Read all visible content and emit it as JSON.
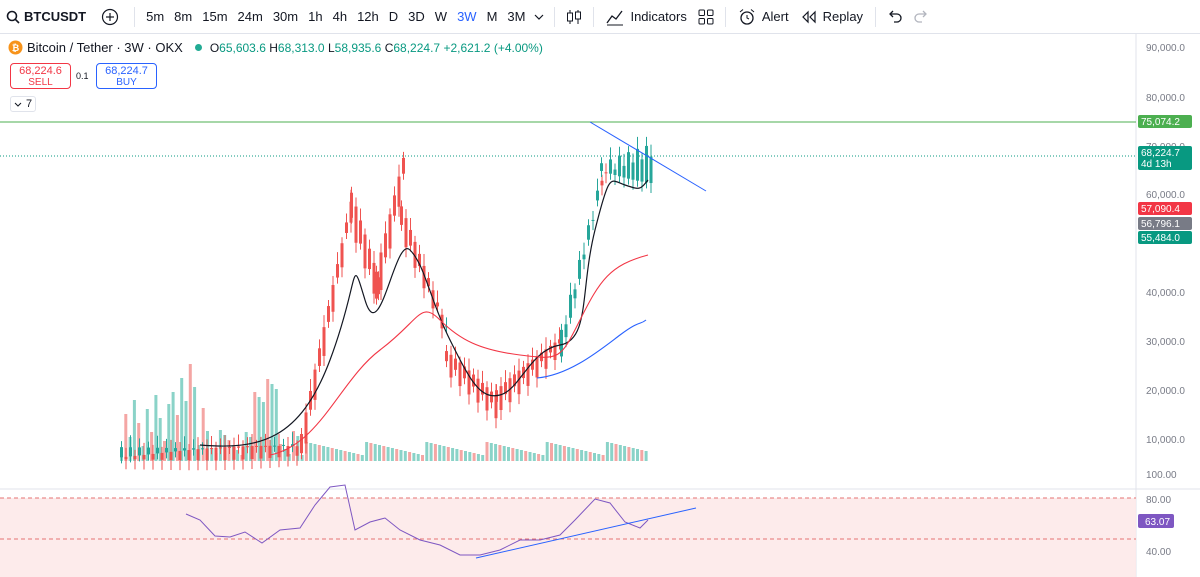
{
  "toolbar": {
    "symbol": "BTCUSDT",
    "intervals": [
      "5m",
      "8m",
      "15m",
      "24m",
      "30m",
      "1h",
      "4h",
      "12h",
      "D",
      "3D",
      "W",
      "3W",
      "M",
      "3M"
    ],
    "active_interval": "3W",
    "indicators_label": "Indicators",
    "alert_label": "Alert",
    "replay_label": "Replay"
  },
  "legend": {
    "title": "Bitcoin / Tether · 3W · OKX",
    "open": "65,603.6",
    "high": "68,313.0",
    "low": "58,935.6",
    "close": "68,224.7",
    "change": "+2,621.2 (+4.00%)",
    "o_label": "O",
    "h_label": "H",
    "l_label": "L",
    "c_label": "C"
  },
  "trade": {
    "sell_price": "68,224.6",
    "sell_label": "SELL",
    "buy_price": "68,224.7",
    "buy_label": "BUY",
    "spread": "0.1",
    "collapsed_count": "7"
  },
  "price_axis": {
    "ticks": [
      "90,000.0",
      "80,000.0",
      "70,000.0",
      "60,000.0",
      "40,000.0",
      "30,000.0",
      "20,000.0",
      "10,000.0"
    ],
    "labels": [
      {
        "text": "75,074.2",
        "color": "#4caf50"
      },
      {
        "text": "68,224.7",
        "sub": "4d 13h",
        "color": "#089981"
      },
      {
        "text": "57,090.4",
        "color": "#f23645"
      },
      {
        "text": "56,796.1",
        "color": "#787b86"
      },
      {
        "text": "55,484.0",
        "color": "#089981"
      }
    ]
  },
  "rsi_axis": {
    "ticks": [
      "100.00",
      "80.00",
      "40.00"
    ],
    "value": "63.07"
  },
  "colors": {
    "up": "#26a69a",
    "down": "#ef5350",
    "accent": "#2962ff",
    "sma_short": "#131722",
    "sma_mid": "#f23645",
    "sma_long": "#2962ff",
    "rsi": "#7e57c2"
  }
}
